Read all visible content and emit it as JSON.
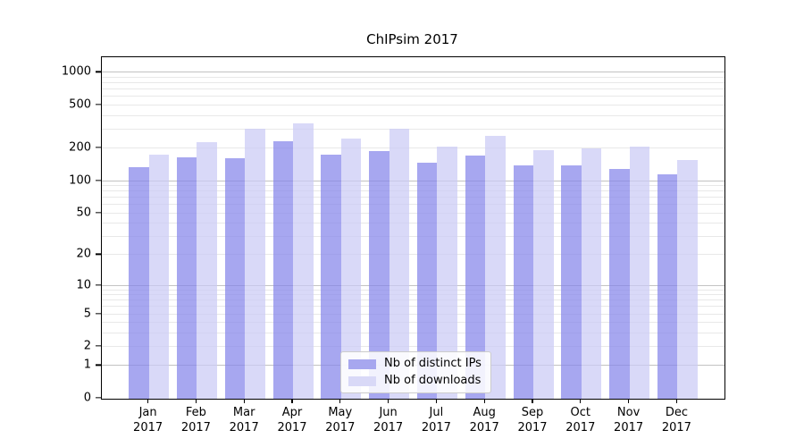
{
  "title": "ChIPsim 2017",
  "chart_data": {
    "type": "bar",
    "title": "ChIPsim 2017",
    "categories": [
      "Jan",
      "Feb",
      "Mar",
      "Apr",
      "May",
      "Jun",
      "Jul",
      "Aug",
      "Sep",
      "Oct",
      "Nov",
      "Dec"
    ],
    "category_year": "2017",
    "series": [
      {
        "name": "Nb of distinct IPs",
        "bar_color": "rgba(133,133,234,0.72)",
        "legend_color": "#a7a7ef",
        "values": [
          135,
          167,
          163,
          233,
          175,
          189,
          147,
          172,
          140,
          140,
          129,
          115
        ]
      },
      {
        "name": "Nb of downloads",
        "bar_color": "rgba(202,202,245,0.72)",
        "legend_color": "#d9d9f7",
        "values": [
          176,
          231,
          308,
          343,
          247,
          304,
          208,
          263,
          193,
          199,
          209,
          156
        ]
      }
    ],
    "xlabel": "",
    "ylabel": "",
    "yscale": "log1p",
    "ylim": [
      0,
      1370
    ],
    "ylim_top_units": 3.144,
    "ytick_values": [
      0,
      1,
      2,
      5,
      10,
      20,
      50,
      100,
      200,
      500,
      1000
    ],
    "ytick_labels": [
      "0",
      "1",
      "2",
      "5",
      "10",
      "20",
      "50",
      "100",
      "200",
      "500",
      "1000"
    ],
    "minor_grid_values": [
      2,
      3,
      4,
      5,
      6,
      7,
      8,
      9,
      20,
      30,
      40,
      50,
      60,
      70,
      80,
      90,
      200,
      300,
      400,
      500,
      600,
      700,
      800,
      900
    ],
    "major_grid_values": [
      1,
      10,
      100,
      1000
    ],
    "grid": "on",
    "legend_position": "lower center-right inside plot",
    "colors": {
      "axis": "#000000",
      "minor_grid": "#e8e8e8",
      "major_grid": "#c3c3c3",
      "legend_border": "#cccccc"
    }
  }
}
